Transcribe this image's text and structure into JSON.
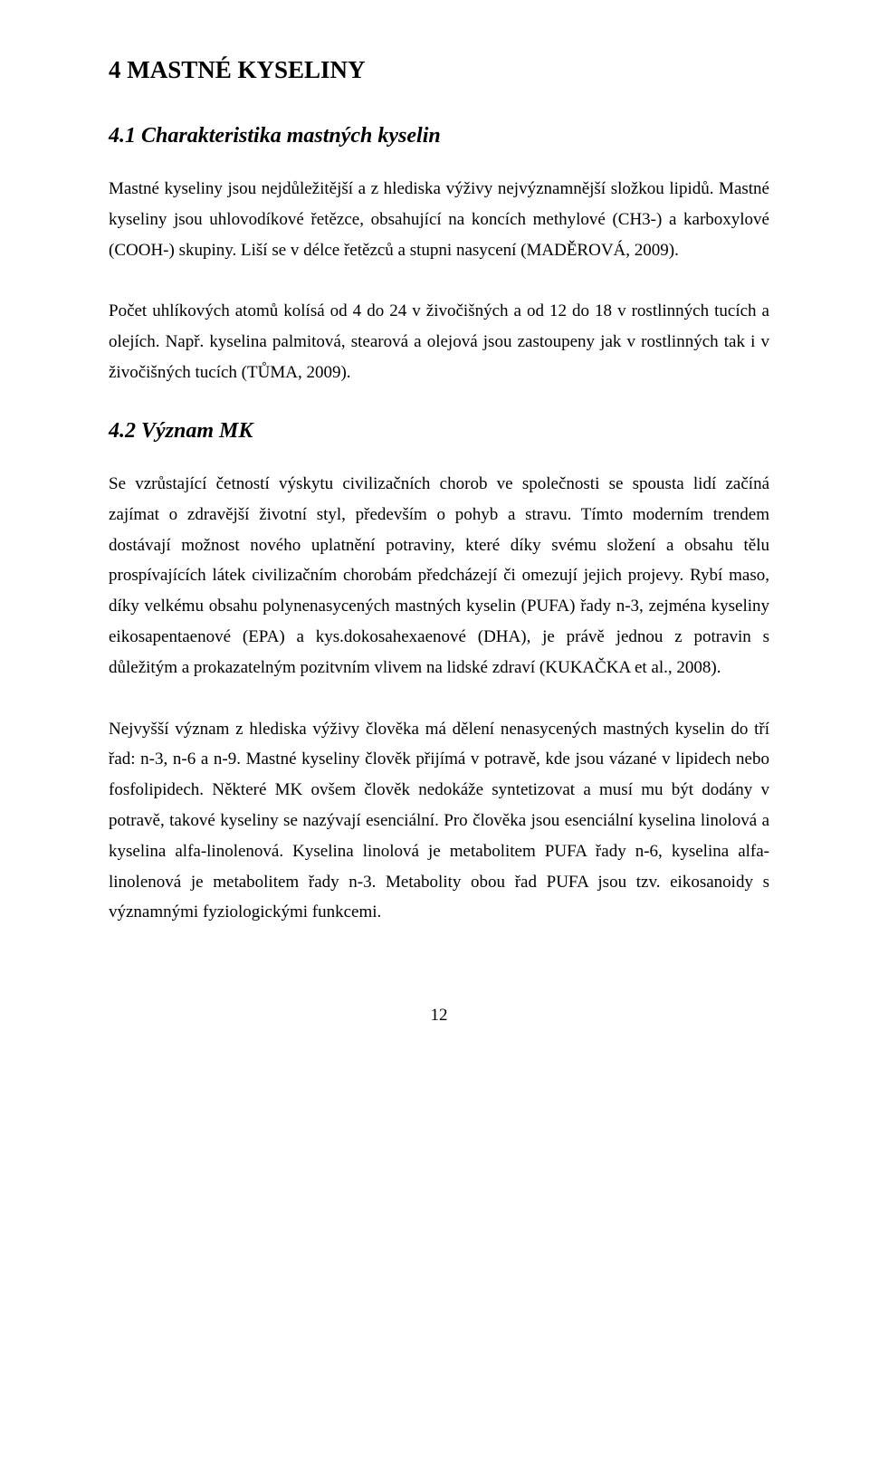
{
  "doc": {
    "h1": "4  MASTNÉ KYSELINY",
    "s41": {
      "heading": "4.1  Charakteristika mastných kyselin",
      "p1": "Mastné kyseliny jsou nejdůležitější a z hlediska výživy nejvýznamnější složkou lipidů. Mastné kyseliny jsou uhlovodíkové řetězce, obsahující na koncích methylové (CH3-) a karboxylové (COOH-) skupiny. Liší se v délce řetězců a stupni nasycení (MADĚROVÁ, 2009).",
      "p2": "Počet uhlíkových atomů kolísá od 4 do 24 v živočišných a od 12 do 18 v rostlinných tucích a olejích. Např. kyselina palmitová, stearová a olejová jsou zastoupeny jak v rostlinných tak i v živočišných tucích (TŮMA, 2009)."
    },
    "s42": {
      "heading": "4.2  Význam MK",
      "p1": "Se vzrůstající četností výskytu civilizačních chorob ve společnosti se spousta lidí začíná zajímat o zdravější životní styl, především o pohyb a stravu. Tímto moderním trendem dostávají možnost nového uplatnění potraviny, které díky svému složení a obsahu tělu prospívajících látek civilizačním chorobám předcházejí či omezují jejich projevy. Rybí maso, díky velkému obsahu polynenasycených mastných kyselin (PUFA) řady n-3, zejména kyseliny eikosapentaenové (EPA) a kys.dokosahexaenové (DHA), je právě jednou z potravin s důležitým a prokazatelným pozitvním vlivem na lidské zdraví (KUKAČKA et al., 2008).",
      "p2": "Nejvyšší význam z hlediska výživy člověka má dělení nenasycených mastných kyselin do tří řad: n-3, n-6 a n-9. Mastné kyseliny člověk přijímá v potravě, kde jsou vázané v lipidech nebo fosfolipidech. Některé MK ovšem člověk nedokáže syntetizovat a musí mu být dodány v potravě, takové kyseliny se nazývají esenciální. Pro člověka jsou esenciální kyselina linolová a kyselina alfa-linolenová. Kyselina linolová je metabolitem PUFA řady n-6, kyselina alfa-linolenová je metabolitem řady n-3. Metabolity obou řad PUFA jsou tzv. eikosanoidy s významnými fyziologickými funkcemi."
    },
    "page_number": "12"
  }
}
